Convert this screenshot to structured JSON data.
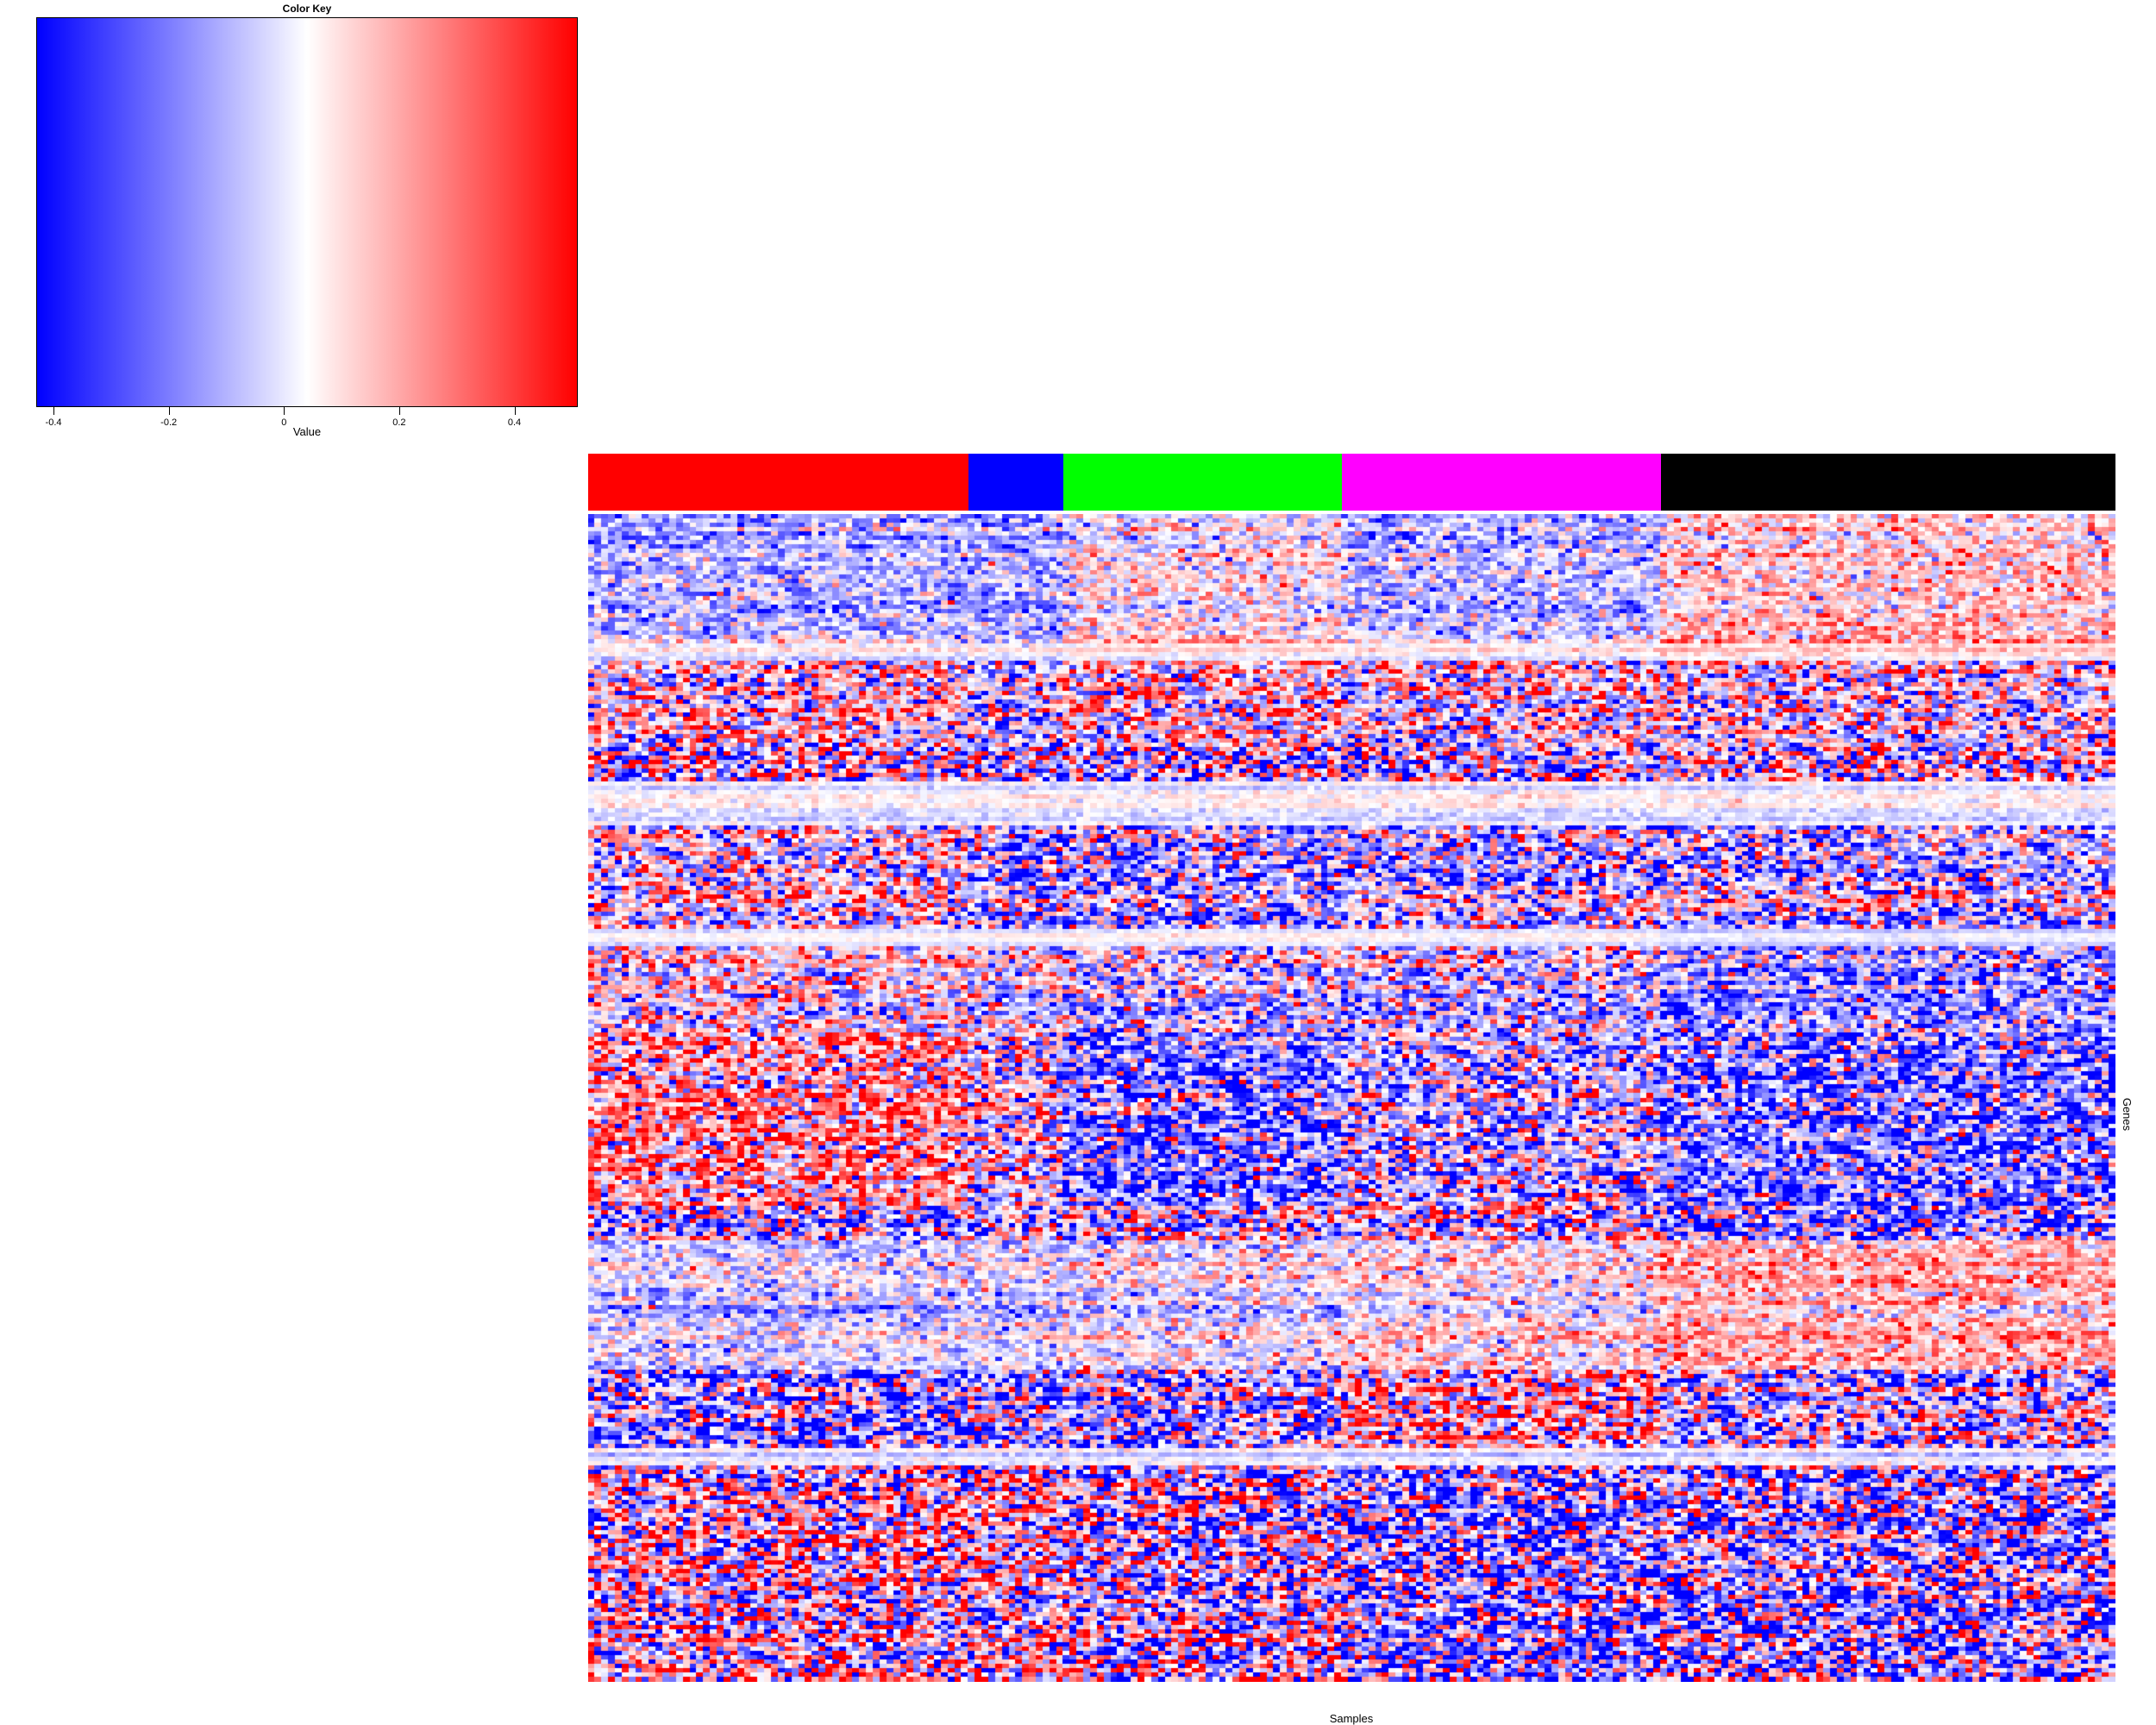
{
  "chart_data": {
    "type": "heatmap",
    "title": "",
    "xlabel": "Samples",
    "ylabel": "Genes",
    "n_rows": 270,
    "n_cols": 225,
    "color_key": {
      "title": "Color Key",
      "xlabel": "Value",
      "range": [
        -0.43,
        0.51
      ],
      "ticks": [
        -0.4,
        -0.2,
        0,
        0.2,
        0.4
      ],
      "tick_labels": [
        "-0.4",
        "-0.2",
        "0",
        "0.2",
        "0.4"
      ],
      "low_color": "#0000ff",
      "mid_color": "#ffffff",
      "high_color": "#ff0000",
      "mid_value": 0.04
    },
    "column_groups": [
      {
        "color": "#ff0000",
        "n": 56
      },
      {
        "color": "#0000ff",
        "n": 14
      },
      {
        "color": "#00ff00",
        "n": 41
      },
      {
        "color": "#ff00ff",
        "n": 47
      },
      {
        "color": "#000000",
        "n": 67
      }
    ],
    "row_blocks": [
      {
        "rows": 30,
        "means": [
          -0.1,
          -0.12,
          0.05,
          -0.08,
          0.12
        ],
        "spread": 0.15
      },
      {
        "rows": 4,
        "means": [
          -0.02,
          -0.02,
          0.02,
          0.0,
          0.05
        ],
        "spread": 0.05
      },
      {
        "rows": 20,
        "means": [
          0.08,
          -0.05,
          0.1,
          0.05,
          0.05
        ],
        "spread": 0.3
      },
      {
        "rows": 8,
        "means": [
          0.0,
          0.0,
          -0.05,
          -0.05,
          0.0
        ],
        "spread": 0.4
      },
      {
        "rows": 10,
        "means": [
          0.0,
          0.0,
          0.0,
          0.0,
          0.0
        ],
        "spread": 0.05
      },
      {
        "rows": 24,
        "means": [
          0.05,
          -0.1,
          -0.1,
          -0.05,
          -0.05
        ],
        "spread": 0.3
      },
      {
        "rows": 4,
        "means": [
          0.04,
          0.04,
          0.06,
          0.04,
          0.0
        ],
        "spread": 0.03
      },
      {
        "rows": 20,
        "means": [
          0.05,
          0.0,
          -0.05,
          -0.05,
          -0.15
        ],
        "spread": 0.25
      },
      {
        "rows": 40,
        "means": [
          0.2,
          0.05,
          -0.2,
          -0.05,
          -0.2
        ],
        "spread": 0.3
      },
      {
        "rows": 8,
        "means": [
          -0.05,
          -0.05,
          -0.05,
          0.05,
          -0.15
        ],
        "spread": 0.35
      },
      {
        "rows": 30,
        "means": [
          -0.05,
          -0.05,
          0.0,
          0.05,
          0.15
        ],
        "spread": 0.15
      },
      {
        "rows": 18,
        "means": [
          -0.15,
          -0.1,
          -0.1,
          0.15,
          -0.05
        ],
        "spread": 0.35
      },
      {
        "rows": 4,
        "means": [
          0.0,
          0.0,
          0.0,
          0.0,
          0.0
        ],
        "spread": 0.05
      },
      {
        "rows": 50,
        "means": [
          0.08,
          0.1,
          0.0,
          -0.12,
          -0.08
        ],
        "spread": 0.4
      }
    ]
  }
}
